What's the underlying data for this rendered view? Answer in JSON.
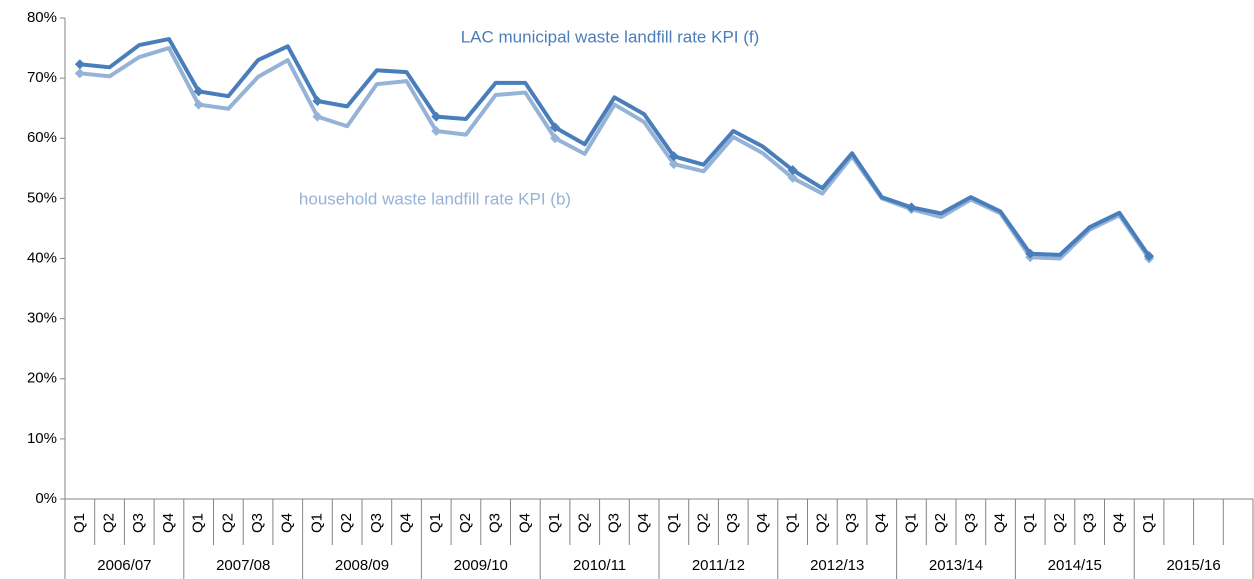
{
  "chart_data": {
    "type": "line",
    "categories": [
      "Q1",
      "Q2",
      "Q3",
      "Q4",
      "Q1",
      "Q2",
      "Q3",
      "Q4",
      "Q1",
      "Q2",
      "Q3",
      "Q4",
      "Q1",
      "Q2",
      "Q3",
      "Q4",
      "Q1",
      "Q2",
      "Q3",
      "Q4",
      "Q1",
      "Q2",
      "Q3",
      "Q4",
      "Q1",
      "Q2",
      "Q3",
      "Q4",
      "Q1",
      "Q2",
      "Q3",
      "Q4",
      "Q1",
      "Q2",
      "Q3",
      "Q4",
      "Q1",
      null,
      null,
      null
    ],
    "category_groups": [
      "2006/07",
      "2007/08",
      "2008/09",
      "2009/10",
      "2010/11",
      "2011/12",
      "2012/13",
      "2013/14",
      "2014/15",
      "2015/16"
    ],
    "series": [
      {
        "name": "LAC municipal waste landfill rate KPI (f)",
        "color": "#4a7ebb",
        "values": [
          72.3,
          71.8,
          75.5,
          76.5,
          67.8,
          67.0,
          73.0,
          75.3,
          66.2,
          65.3,
          71.3,
          71.0,
          63.6,
          63.2,
          69.2,
          69.2,
          61.8,
          59.0,
          66.8,
          64.0,
          57.0,
          55.6,
          61.2,
          58.6,
          54.7,
          51.7,
          57.5,
          50.2,
          48.5,
          47.5,
          50.2,
          47.8,
          40.8,
          40.6,
          45.2,
          47.6,
          40.4,
          null,
          null,
          null
        ]
      },
      {
        "name": "household waste landfill rate KPI (b)",
        "color": "#95b3d7",
        "values": [
          70.8,
          70.3,
          73.5,
          75.0,
          65.6,
          64.9,
          70.2,
          73.0,
          63.6,
          62.0,
          69.0,
          69.5,
          61.2,
          60.6,
          67.2,
          67.6,
          60.0,
          57.4,
          65.6,
          62.7,
          55.7,
          54.5,
          60.2,
          57.5,
          53.4,
          50.8,
          57.0,
          50.0,
          48.2,
          46.9,
          49.8,
          47.5,
          40.2,
          40.0,
          44.8,
          47.2,
          40.0,
          null,
          null,
          null
        ]
      }
    ],
    "ylim": [
      0,
      80
    ],
    "yticks": [
      {
        "value": 0,
        "label": "0%"
      },
      {
        "value": 10,
        "label": "10%"
      },
      {
        "value": 20,
        "label": "20%"
      },
      {
        "value": 30,
        "label": "30%"
      },
      {
        "value": 40,
        "label": "40%"
      },
      {
        "value": 50,
        "label": "50%"
      },
      {
        "value": 60,
        "label": "60%"
      },
      {
        "value": 70,
        "label": "70%"
      },
      {
        "value": 80,
        "label": "80%"
      }
    ],
    "grid": false
  }
}
